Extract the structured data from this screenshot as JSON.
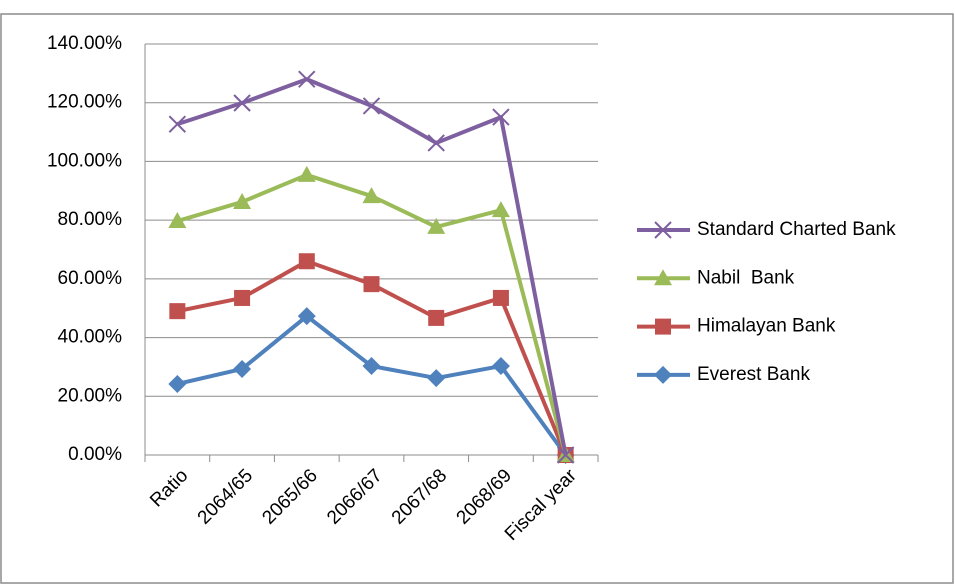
{
  "chart_data": {
    "type": "line",
    "categories": [
      "Ratio",
      "2064/65",
      "2065/66",
      "2066/67",
      "2067/68",
      "2068/69",
      "Fiscal year"
    ],
    "series": [
      {
        "name": "Standard Charted Bank",
        "color": "#7e5fa0",
        "marker": "x",
        "values": [
          112.7,
          119.9,
          128,
          118.9,
          106.3,
          115.1,
          0
        ]
      },
      {
        "name": "Nabil  Bank",
        "color": "#9bbb59",
        "marker": "triangle",
        "values": [
          79.7,
          86.2,
          95.4,
          88.2,
          77.7,
          83.4,
          0
        ]
      },
      {
        "name": "Himalayan Bank",
        "color": "#c0504d",
        "marker": "square",
        "values": [
          49,
          53.5,
          66,
          58.2,
          46.7,
          53.5,
          0
        ]
      },
      {
        "name": "Everest Bank",
        "color": "#4f81bd",
        "marker": "diamond",
        "values": [
          24.2,
          29.3,
          47.3,
          30.3,
          26.2,
          30.3,
          0
        ]
      }
    ],
    "ylim": [
      0,
      140
    ],
    "yticks": [
      {
        "value": 0,
        "label": "0.00%"
      },
      {
        "value": 20,
        "label": "20.00%"
      },
      {
        "value": 40,
        "label": "40.00%"
      },
      {
        "value": 60,
        "label": "60.00%"
      },
      {
        "value": 80,
        "label": "80.00%"
      },
      {
        "value": 100,
        "label": "100.00%"
      },
      {
        "value": 120,
        "label": "120.00%"
      },
      {
        "value": 140,
        "label": "140.00%"
      }
    ],
    "grid": true,
    "legend": "right"
  }
}
